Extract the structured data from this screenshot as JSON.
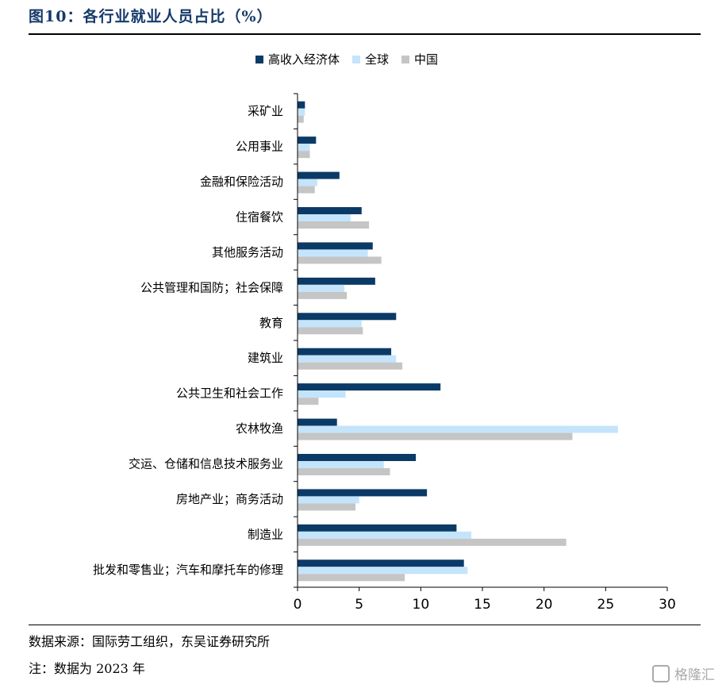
{
  "header": {
    "title": "图10：各行业就业人员占比（%）"
  },
  "footer": {
    "source": "数据来源：国际劳工组织，东吴证券研究所",
    "note": "注：数据为 2023 年",
    "watermark": "格隆汇"
  },
  "chart_data": {
    "type": "bar",
    "orientation": "horizontal",
    "categories": [
      "采矿业",
      "公用事业",
      "金融和保险活动",
      "住宿餐饮",
      "其他服务活动",
      "公共管理和国防；社会保障",
      "教育",
      "建筑业",
      "公共卫生和社会工作",
      "农林牧渔",
      "交运、仓储和信息技术服务业",
      "房地产业；商务活动",
      "制造业",
      "批发和零售业；汽车和摩托车的修理"
    ],
    "series": [
      {
        "name": "高收入经济体",
        "color": "#0b3a66",
        "values": [
          0.6,
          1.5,
          3.4,
          5.2,
          6.1,
          6.3,
          8.0,
          7.6,
          11.6,
          3.2,
          9.6,
          10.5,
          12.9,
          13.5
        ]
      },
      {
        "name": "全球",
        "color": "#c4e4fb",
        "values": [
          0.6,
          1.0,
          1.6,
          4.3,
          5.7,
          3.8,
          5.2,
          8.0,
          3.9,
          26.0,
          7.0,
          5.0,
          14.1,
          13.8
        ]
      },
      {
        "name": "中国",
        "color": "#c5c5c5",
        "values": [
          0.5,
          1.0,
          1.4,
          5.8,
          6.8,
          4.0,
          5.3,
          8.5,
          1.7,
          22.3,
          7.5,
          4.7,
          21.8,
          8.7
        ]
      }
    ],
    "xlim": [
      0,
      30
    ],
    "xticks": [
      0,
      5,
      10,
      15,
      20,
      25,
      30
    ],
    "legend_position": "top",
    "grid": false
  }
}
